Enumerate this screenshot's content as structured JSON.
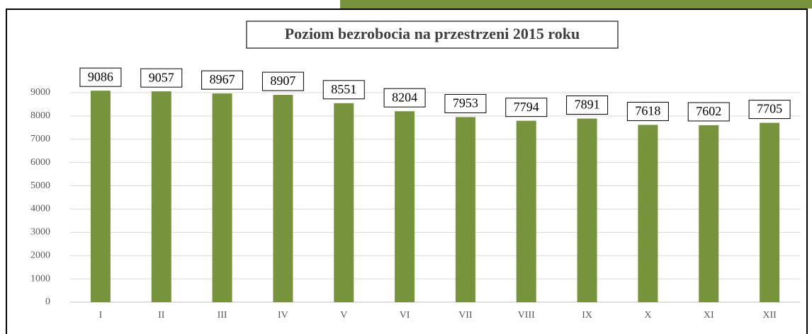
{
  "chart_data": {
    "type": "bar",
    "title": "Poziom bezrobocia na przestrzeni 2015 roku",
    "categories": [
      "I",
      "II",
      "III",
      "IV",
      "V",
      "VI",
      "VII",
      "VIII",
      "IX",
      "X",
      "XI",
      "XII"
    ],
    "values": [
      9086,
      9057,
      8967,
      8907,
      8551,
      8204,
      7953,
      7794,
      7891,
      7618,
      7602,
      7705
    ],
    "color": "#77933c",
    "ylim": [
      0,
      9000
    ],
    "yticks": [
      0,
      1000,
      2000,
      3000,
      4000,
      5000,
      6000,
      7000,
      8000,
      9000
    ],
    "grid": true
  }
}
